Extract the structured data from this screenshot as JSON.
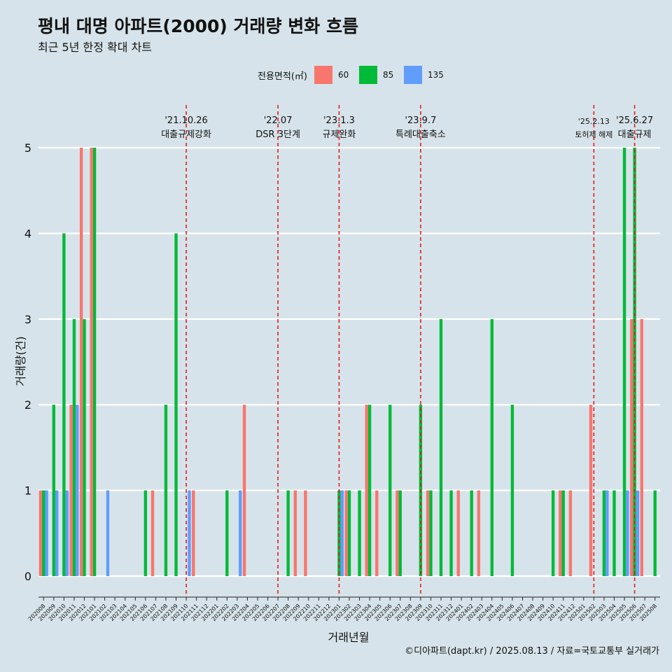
{
  "header": {
    "title": "평내 대명 아파트(2000) 거래량 변화 흐름",
    "subtitle": "최근 5년 한정 확대 차트"
  },
  "legend": {
    "title": "전용면적(㎡)",
    "items": [
      {
        "label": "60",
        "color": "#f8766d"
      },
      {
        "label": "85",
        "color": "#00ba38"
      },
      {
        "label": "135",
        "color": "#619cff"
      }
    ]
  },
  "caption": "©디아파트(dapt.kr) / 2025.08.13 / 자료=국토교통부 실거래가",
  "chart_data": {
    "type": "bar",
    "xlabel": "거래년월",
    "ylabel": "거래량(건)",
    "ylim": [
      0,
      5
    ],
    "yticks": [
      0,
      1,
      2,
      3,
      4,
      5
    ],
    "categories": [
      "202008",
      "202009",
      "202010",
      "202011",
      "202012",
      "202101",
      "202102",
      "202103",
      "202104",
      "202105",
      "202106",
      "202107",
      "202108",
      "202109",
      "202110",
      "202111",
      "202112",
      "202201",
      "202202",
      "202203",
      "202204",
      "202205",
      "202206",
      "202207",
      "202208",
      "202209",
      "202210",
      "202211",
      "202212",
      "202301",
      "202302",
      "202303",
      "202304",
      "202305",
      "202306",
      "202307",
      "202308",
      "202309",
      "202310",
      "202311",
      "202312",
      "202401",
      "202402",
      "202403",
      "202404",
      "202405",
      "202406",
      "202407",
      "202408",
      "202409",
      "202410",
      "202411",
      "202412",
      "202501",
      "202502",
      "202503",
      "202504",
      "202505",
      "202506",
      "202507",
      "202508"
    ],
    "series": [
      {
        "name": "60",
        "color": "#f8766d",
        "values": [
          1,
          0,
          0,
          2,
          5,
          5,
          0,
          0,
          0,
          0,
          0,
          1,
          0,
          0,
          0,
          1,
          0,
          0,
          0,
          0,
          2,
          0,
          0,
          0,
          0,
          1,
          1,
          0,
          0,
          0,
          1,
          0,
          2,
          1,
          0,
          1,
          0,
          0,
          1,
          0,
          0,
          1,
          0,
          1,
          0,
          0,
          0,
          0,
          0,
          0,
          0,
          1,
          1,
          0,
          2,
          0,
          0,
          0,
          3,
          3,
          0
        ]
      },
      {
        "name": "85",
        "color": "#00ba38",
        "values": [
          1,
          2,
          4,
          3,
          3,
          5,
          0,
          0,
          0,
          0,
          1,
          0,
          2,
          4,
          0,
          0,
          0,
          0,
          1,
          0,
          0,
          0,
          0,
          0,
          1,
          0,
          0,
          0,
          0,
          1,
          1,
          1,
          2,
          0,
          2,
          1,
          0,
          2,
          1,
          3,
          1,
          0,
          1,
          0,
          3,
          0,
          2,
          0,
          0,
          0,
          1,
          1,
          0,
          0,
          0,
          1,
          1,
          5,
          5,
          0,
          1
        ]
      },
      {
        "name": "135",
        "color": "#619cff",
        "values": [
          1,
          1,
          1,
          2,
          0,
          0,
          1,
          0,
          0,
          0,
          0,
          0,
          0,
          0,
          1,
          0,
          0,
          0,
          0,
          1,
          0,
          0,
          0,
          0,
          0,
          0,
          0,
          0,
          0,
          1,
          0,
          0,
          0,
          0,
          0,
          0,
          0,
          0,
          0,
          0,
          0,
          0,
          0,
          0,
          0,
          0,
          0,
          0,
          0,
          0,
          0,
          0,
          0,
          0,
          0,
          1,
          0,
          1,
          1,
          0,
          0
        ]
      }
    ],
    "grid": true,
    "legend_position": "top",
    "annotations": [
      {
        "month": "202110",
        "date": "'21.10.26",
        "text": "대출규제강화"
      },
      {
        "month": "202207",
        "date": "'22.07",
        "text": "DSR 3단계"
      },
      {
        "month": "202301",
        "date": "'23.1.3",
        "text": "규제완화"
      },
      {
        "month": "202309",
        "date": "'23.9.7",
        "text": "특례대출축소"
      },
      {
        "month": "202502",
        "date": "'25.2.13",
        "text": "토허제 해제"
      },
      {
        "month": "202506",
        "date": "'25.6.27",
        "text": "대출규제"
      }
    ],
    "line_color": "#e41a1c"
  }
}
